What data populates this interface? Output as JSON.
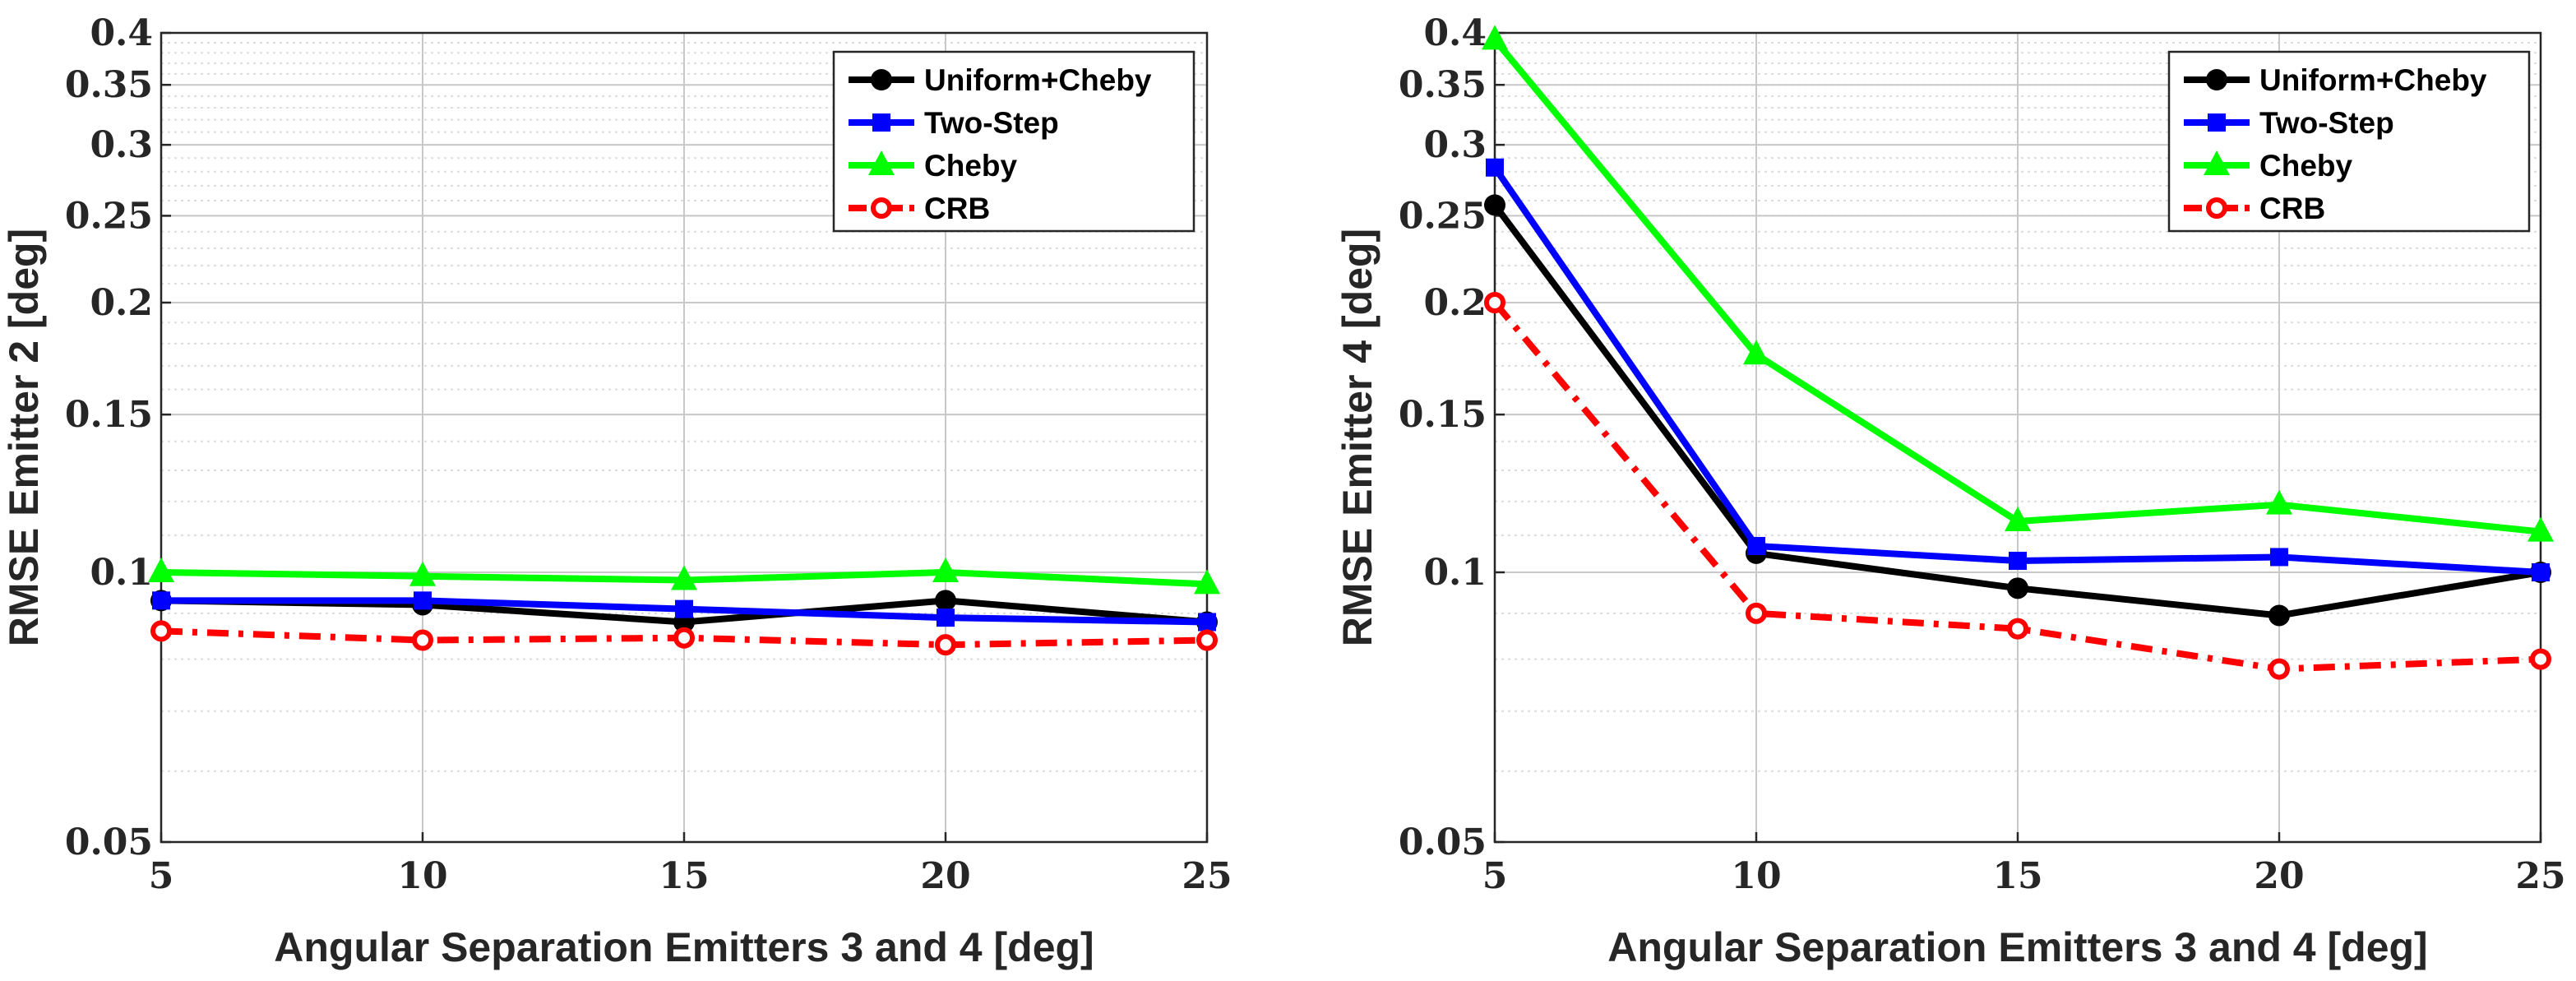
{
  "chart_data": [
    {
      "type": "line",
      "title": "",
      "xlabel": "Angular Separation Emitters 3 and 4 [deg]",
      "ylabel": "RMSE Emitter 2 [deg]",
      "yscale": "log",
      "xlim": [
        5,
        25
      ],
      "ylim": [
        0.05,
        0.4
      ],
      "grid": true,
      "legend_position": "top-right",
      "x": [
        5,
        10,
        15,
        20,
        25
      ],
      "x_ticks": [
        "5",
        "10",
        "15",
        "20",
        "25"
      ],
      "y_ticks": [
        {
          "value": 0.05,
          "label": "0.05"
        },
        {
          "value": 0.1,
          "label": "0.1"
        },
        {
          "value": 0.15,
          "label": "0.15"
        },
        {
          "value": 0.2,
          "label": "0.2"
        },
        {
          "value": 0.25,
          "label": "0.25"
        },
        {
          "value": 0.3,
          "label": "0.3"
        },
        {
          "value": 0.35,
          "label": "0.35"
        },
        {
          "value": 0.4,
          "label": "0.4"
        }
      ],
      "series": [
        {
          "name": "Uniform+Cheby",
          "color": "#000000",
          "marker": "circle",
          "dash": "solid",
          "values": [
            0.093,
            0.092,
            0.088,
            0.093,
            0.088
          ]
        },
        {
          "name": "Two-Step",
          "color": "#0000ff",
          "marker": "square",
          "dash": "solid",
          "values": [
            0.093,
            0.093,
            0.091,
            0.089,
            0.088
          ]
        },
        {
          "name": "Cheby",
          "color": "#00ff00",
          "marker": "triangle",
          "dash": "solid",
          "values": [
            0.1,
            0.099,
            0.098,
            0.1,
            0.097
          ]
        },
        {
          "name": "CRB",
          "color": "#ff0000",
          "marker": "open-circle",
          "dash": "dashdot",
          "values": [
            0.086,
            0.084,
            0.0845,
            0.083,
            0.084
          ]
        }
      ]
    },
    {
      "type": "line",
      "title": "",
      "xlabel": "Angular Separation Emitters 3 and 4 [deg]",
      "ylabel": "RMSE Emitter 4 [deg]",
      "yscale": "log",
      "xlim": [
        5,
        25
      ],
      "ylim": [
        0.05,
        0.4
      ],
      "grid": true,
      "legend_position": "top-right",
      "x": [
        5,
        10,
        15,
        20,
        25
      ],
      "x_ticks": [
        "5",
        "10",
        "15",
        "20",
        "25"
      ],
      "y_ticks": [
        {
          "value": 0.05,
          "label": "0.05"
        },
        {
          "value": 0.1,
          "label": "0.1"
        },
        {
          "value": 0.15,
          "label": "0.15"
        },
        {
          "value": 0.2,
          "label": "0.2"
        },
        {
          "value": 0.25,
          "label": "0.25"
        },
        {
          "value": 0.3,
          "label": "0.3"
        },
        {
          "value": 0.35,
          "label": "0.35"
        },
        {
          "value": 0.4,
          "label": "0.4"
        }
      ],
      "series": [
        {
          "name": "Uniform+Cheby",
          "color": "#000000",
          "marker": "circle",
          "dash": "solid",
          "values": [
            0.257,
            0.105,
            0.096,
            0.0895,
            0.1
          ]
        },
        {
          "name": "Two-Step",
          "color": "#0000ff",
          "marker": "square",
          "dash": "solid",
          "values": [
            0.283,
            0.107,
            0.103,
            0.104,
            0.1
          ]
        },
        {
          "name": "Cheby",
          "color": "#00ff00",
          "marker": "triangle",
          "dash": "solid",
          "values": [
            0.393,
            0.175,
            0.114,
            0.119,
            0.111
          ]
        },
        {
          "name": "CRB",
          "color": "#ff0000",
          "marker": "open-circle",
          "dash": "dashdot",
          "values": [
            0.2,
            0.09,
            0.0865,
            0.078,
            0.08
          ]
        }
      ]
    }
  ]
}
